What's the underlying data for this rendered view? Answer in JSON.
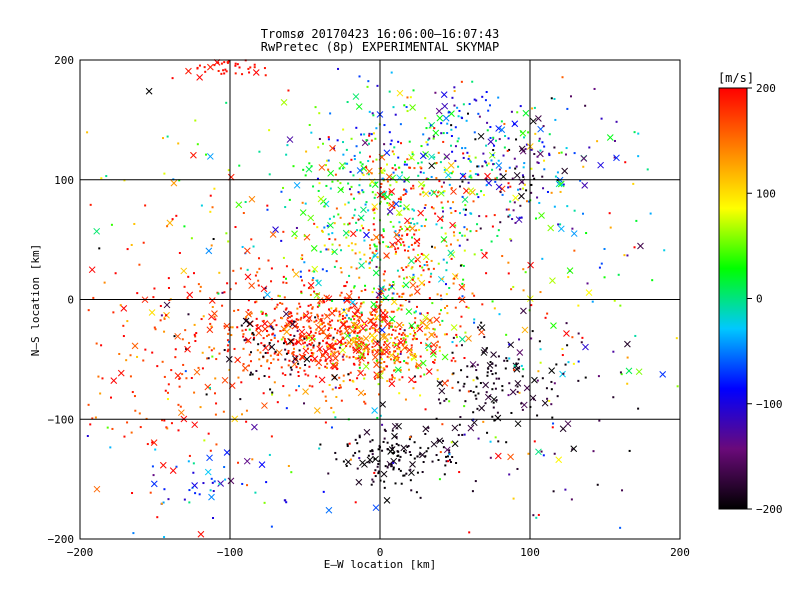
{
  "chart_data": {
    "type": "scatter",
    "title": "Tromsø 20170423 16:06:00–16:07:43",
    "subtitle": "RwPretec (8p) EXPERIMENTAL SKYMAP",
    "xlabel": "E–W location [km]",
    "ylabel": "N–S location [km]",
    "xlim": [
      -200,
      200
    ],
    "ylim": [
      -200,
      200
    ],
    "x_ticks": [
      -200,
      -100,
      0,
      100,
      200
    ],
    "y_ticks": [
      -200,
      -100,
      0,
      100,
      200
    ],
    "x_tick_labels": [
      "−200",
      "−100",
      "0",
      "100",
      "200"
    ],
    "y_tick_labels": [
      "200",
      "100",
      "0",
      "−100",
      "−200"
    ],
    "grid": true,
    "colorbar": {
      "label": "[m/s]",
      "range": [
        -200,
        200
      ],
      "tick_values": [
        200,
        100,
        0,
        -100,
        -200
      ],
      "tick_labels": [
        "200",
        "100",
        "0",
        "−100",
        "−200"
      ],
      "colors": [
        "#000000",
        "#6a0a7a",
        "#0000ff",
        "#00c8ff",
        "#00ff00",
        "#ffff00",
        "#ff8000",
        "#ff0000"
      ]
    },
    "markers": [
      "dot",
      "x"
    ],
    "clusters": [
      {
        "x": -30,
        "y": -30,
        "sx": 35,
        "sy": 20,
        "n": 520,
        "v": 185,
        "vs": 25
      },
      {
        "x": 10,
        "y": -40,
        "sx": 25,
        "sy": 18,
        "n": 200,
        "v": 120,
        "vs": 50
      },
      {
        "x": -80,
        "y": -20,
        "sx": 55,
        "sy": 45,
        "n": 200,
        "v": 170,
        "vs": 30
      },
      {
        "x": 0,
        "y": 60,
        "sx": 35,
        "sy": 45,
        "n": 320,
        "v": 30,
        "vs": 50
      },
      {
        "x": 40,
        "y": 130,
        "sx": 45,
        "sy": 25,
        "n": 220,
        "v": -20,
        "vs": 70
      },
      {
        "x": 30,
        "y": 100,
        "sx": 25,
        "sy": 15,
        "n": 60,
        "v": 180,
        "vs": 20
      },
      {
        "x": 90,
        "y": 110,
        "sx": 25,
        "sy": 25,
        "n": 120,
        "v": -150,
        "vs": 60
      },
      {
        "x": 20,
        "y": 40,
        "sx": 25,
        "sy": 30,
        "n": 140,
        "v": 170,
        "vs": 30
      },
      {
        "x": 10,
        "y": -130,
        "sx": 20,
        "sy": 12,
        "n": 150,
        "v": -195,
        "vs": 10
      },
      {
        "x": 70,
        "y": -70,
        "sx": 25,
        "sy": 20,
        "n": 120,
        "v": -190,
        "vs": 15
      },
      {
        "x": -70,
        "y": -45,
        "sx": 25,
        "sy": 20,
        "n": 60,
        "v": -190,
        "vs": 15
      },
      {
        "x": -100,
        "y": 195,
        "sx": 12,
        "sy": 6,
        "n": 50,
        "v": 195,
        "vs": 5
      },
      {
        "x": -110,
        "y": -150,
        "sx": 25,
        "sy": 15,
        "n": 45,
        "v": -70,
        "vs": 40
      },
      {
        "x": 0,
        "y": 0,
        "sx": 110,
        "sy": 110,
        "n": 380,
        "v": 60,
        "vs": 130
      },
      {
        "x": 130,
        "y": 40,
        "sx": 40,
        "sy": 60,
        "n": 70,
        "v": 0,
        "vs": 90
      },
      {
        "x": -150,
        "y": -60,
        "sx": 30,
        "sy": 50,
        "n": 90,
        "v": 180,
        "vs": 30
      },
      {
        "x": 110,
        "y": -100,
        "sx": 30,
        "sy": 40,
        "n": 40,
        "v": -180,
        "vs": 30
      }
    ]
  }
}
